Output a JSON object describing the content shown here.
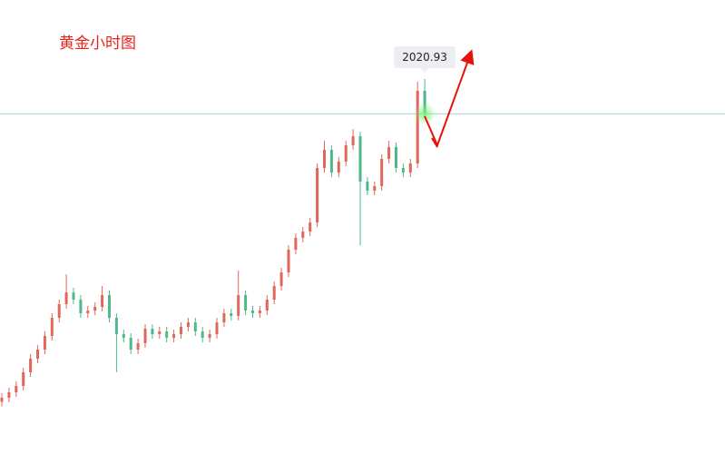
{
  "chart_data": {
    "type": "candlestick",
    "title": "黄金小时图",
    "up_color": "#e0685a",
    "down_color": "#4fb98a",
    "line_color": "#a9d3dc",
    "current_price": 2020.93,
    "ylim": [
      1946,
      2046
    ],
    "open": [
      1957.5,
      1958.4,
      1959.6,
      1961,
      1964,
      1967,
      1969,
      1972,
      1976,
      1979,
      1981.6,
      1980,
      1977,
      1977.6,
      1978.4,
      1981,
      1976,
      1972.4,
      1971.6,
      1969,
      1970.4,
      1973.6,
      1972.4,
      1973,
      1971.6,
      1972.4,
      1974,
      1975,
      1973,
      1971.6,
      1972.4,
      1975,
      1977,
      1976.4,
      1981,
      1977.6,
      1977,
      1977.6,
      1980,
      1983,
      1986,
      1991,
      1993.6,
      1995,
      1997,
      2009,
      2013,
      2008,
      2010.4,
      2014,
      2016,
      2006,
      2004,
      2005,
      2011,
      2013.6,
      2009,
      2008,
      2010,
      2026
    ],
    "high": [
      1959.4,
      1960.6,
      1962,
      1965,
      1968,
      1970,
      1973,
      1977,
      1980,
      1985.6,
      1982.6,
      1981,
      1978.6,
      1979.4,
      1983,
      1982,
      1977,
      1973.4,
      1972.6,
      1971.4,
      1974.6,
      1974.6,
      1974,
      1974,
      1973.4,
      1975,
      1976,
      1976,
      1974,
      1973.4,
      1976,
      1978,
      1978,
      1986.4,
      1982,
      1978.6,
      1978.6,
      1981,
      1984,
      1987,
      1992,
      1994.6,
      1996,
      1998,
      2010,
      2015,
      2014,
      2011.4,
      2015,
      2017.6,
      2017,
      2007,
      2006,
      2012,
      2015,
      2014.6,
      2010,
      2011,
      2028,
      2028.6
    ],
    "low": [
      1956.5,
      1957.4,
      1958.6,
      1960,
      1963,
      1966,
      1968,
      1971,
      1975,
      1978,
      1979,
      1976,
      1976,
      1976.6,
      1977.4,
      1975,
      1964,
      1970.6,
      1968,
      1968,
      1969.4,
      1971.4,
      1971.4,
      1970.6,
      1970.6,
      1971.4,
      1973,
      1972,
      1970.6,
      1970.6,
      1971.4,
      1974,
      1975.4,
      1975.4,
      1976.6,
      1976,
      1976,
      1976.6,
      1979,
      1982,
      1985,
      1990,
      1992.6,
      1994,
      1996,
      2008,
      2007,
      2007,
      2009.4,
      2013,
      1992,
      2003,
      2003,
      2004,
      2010,
      2008,
      2007,
      2007,
      2009,
      2020
    ],
    "close": [
      1958.4,
      1959.6,
      1961,
      1964,
      1967,
      1969,
      1972,
      1976,
      1979,
      1981.6,
      1980,
      1977,
      1977.6,
      1978.4,
      1981,
      1976,
      1972.4,
      1971.6,
      1969,
      1970.4,
      1973.6,
      1972.4,
      1973,
      1971.6,
      1972.4,
      1974,
      1975,
      1973,
      1971.6,
      1972.4,
      1975,
      1977,
      1976.4,
      1981,
      1977.6,
      1977,
      1977.6,
      1980,
      1983,
      1986,
      1991,
      1993.6,
      1995,
      1997,
      2009,
      2013,
      2008,
      2010.4,
      2014,
      2016,
      2006,
      2004,
      2005,
      2011,
      2013.6,
      2009,
      2008,
      2010,
      2026,
      2021
    ]
  }
}
